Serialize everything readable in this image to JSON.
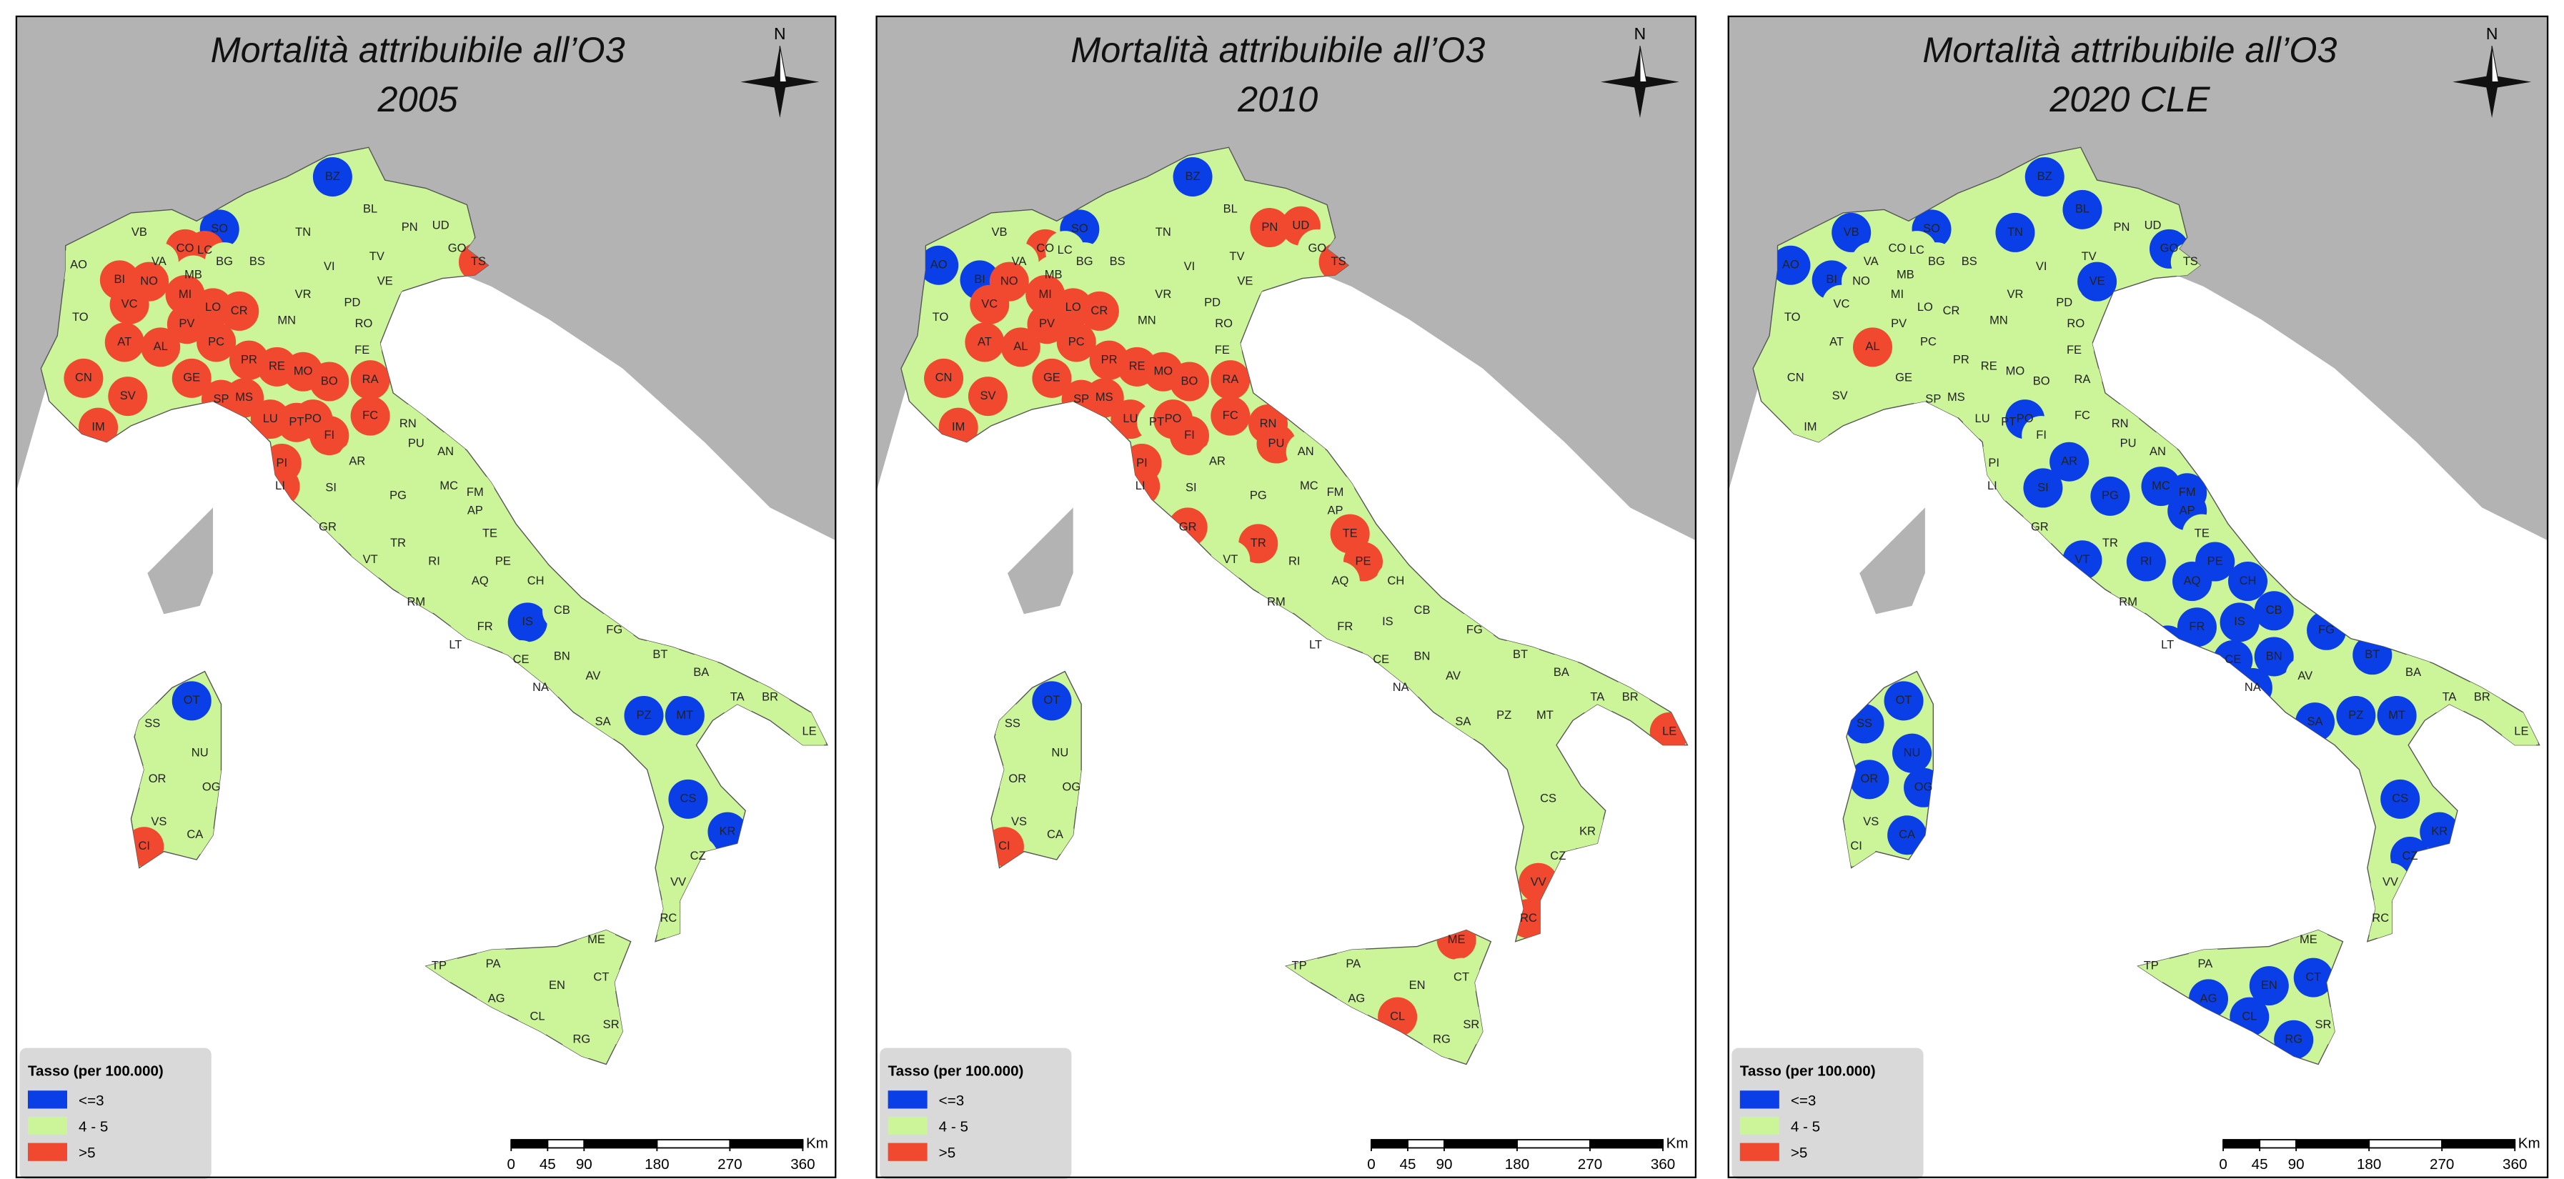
{
  "legend": {
    "title": "Tasso (per 100.000)",
    "items": [
      {
        "label": "<=3",
        "color": "#0a3ee6"
      },
      {
        "label": "4 - 5",
        "color": "#ccf59a"
      },
      {
        "label": ">5",
        "color": "#f0492f"
      }
    ]
  },
  "scale_bar": {
    "unit": "Km",
    "ticks": [
      0,
      45,
      90,
      180,
      270,
      360
    ]
  },
  "north": "N",
  "provinces": [
    "BZ",
    "BL",
    "UD",
    "PN",
    "TN",
    "SO",
    "GO",
    "TS",
    "VB",
    "CO",
    "LC",
    "BG",
    "BS",
    "VI",
    "TV",
    "VA",
    "AO",
    "MB",
    "MI",
    "BI",
    "NO",
    "VE",
    "PD",
    "VR",
    "VC",
    "LO",
    "CR",
    "MN",
    "RO",
    "TO",
    "PV",
    "PC",
    "AT",
    "AL",
    "FE",
    "PR",
    "RE",
    "MO",
    "GE",
    "BO",
    "RA",
    "CN",
    "SV",
    "SP",
    "MS",
    "LU",
    "PT",
    "PO",
    "FI",
    "RN",
    "FC",
    "IM",
    "PU",
    "AN",
    "PI",
    "AR",
    "SI",
    "MC",
    "FM",
    "LI",
    "AP",
    "PG",
    "GR",
    "TE",
    "TR",
    "PE",
    "RI",
    "VT",
    "AQ",
    "CH",
    "RM",
    "FR",
    "IS",
    "CB",
    "FG",
    "LT",
    "CE",
    "BN",
    "AV",
    "BT",
    "BA",
    "NA",
    "SA",
    "TA",
    "BR",
    "PZ",
    "MT",
    "LE",
    "CS",
    "KR",
    "CZ",
    "VV",
    "RC",
    "ME",
    "TP",
    "PA",
    "CT",
    "AG",
    "EN",
    "CL",
    "SR",
    "RG",
    "SS",
    "OT",
    "NU",
    "OR",
    "OG",
    "VS",
    "CA",
    "CI"
  ],
  "panels": [
    {
      "title": "Mortalità attribuibile all’O3",
      "subtitle": "2005",
      "classes": [
        0,
        1,
        1,
        1,
        1,
        0,
        1,
        2,
        1,
        2,
        2,
        1,
        1,
        1,
        1,
        1,
        1,
        1,
        2,
        2,
        2,
        1,
        1,
        1,
        2,
        2,
        2,
        1,
        1,
        1,
        2,
        2,
        2,
        2,
        1,
        2,
        2,
        2,
        2,
        2,
        2,
        2,
        2,
        2,
        2,
        2,
        2,
        2,
        2,
        1,
        2,
        2,
        1,
        1,
        2,
        1,
        1,
        1,
        1,
        2,
        1,
        1,
        1,
        1,
        1,
        1,
        1,
        1,
        1,
        1,
        1,
        1,
        0,
        1,
        1,
        1,
        1,
        1,
        1,
        1,
        1,
        1,
        1,
        1,
        1,
        0,
        0,
        1,
        0,
        0,
        1,
        1,
        1,
        1,
        1,
        1,
        1,
        1,
        1,
        1,
        1,
        1,
        1,
        0,
        1,
        1,
        1,
        1,
        1,
        2
      ]
    },
    {
      "title": "Mortalità attribuibile all’O3",
      "subtitle": "2010",
      "classes": [
        0,
        1,
        2,
        2,
        1,
        0,
        1,
        2,
        1,
        2,
        1,
        1,
        1,
        1,
        1,
        1,
        0,
        1,
        2,
        0,
        2,
        1,
        1,
        1,
        2,
        2,
        2,
        1,
        1,
        1,
        2,
        2,
        2,
        2,
        1,
        2,
        2,
        2,
        2,
        2,
        2,
        2,
        2,
        2,
        2,
        2,
        1,
        2,
        2,
        2,
        2,
        2,
        2,
        1,
        2,
        1,
        1,
        1,
        1,
        2,
        1,
        1,
        2,
        2,
        2,
        2,
        1,
        1,
        1,
        1,
        1,
        1,
        1,
        1,
        1,
        1,
        1,
        1,
        1,
        1,
        1,
        1,
        1,
        1,
        1,
        1,
        1,
        2,
        1,
        1,
        1,
        2,
        2,
        2,
        1,
        1,
        1,
        1,
        1,
        2,
        1,
        1,
        1,
        0,
        1,
        1,
        1,
        1,
        1,
        2
      ]
    },
    {
      "title": "Mortalità attribuibile all’O3",
      "subtitle": "2020 CLE",
      "classes": [
        0,
        0,
        1,
        1,
        0,
        0,
        0,
        1,
        0,
        1,
        1,
        1,
        1,
        1,
        1,
        1,
        0,
        1,
        1,
        0,
        1,
        0,
        1,
        1,
        1,
        1,
        1,
        1,
        1,
        1,
        1,
        1,
        1,
        2,
        1,
        1,
        1,
        1,
        1,
        1,
        1,
        1,
        1,
        1,
        1,
        1,
        1,
        0,
        1,
        1,
        1,
        1,
        1,
        1,
        1,
        0,
        0,
        0,
        0,
        1,
        0,
        0,
        1,
        1,
        1,
        0,
        0,
        0,
        0,
        0,
        1,
        0,
        0,
        0,
        0,
        0,
        0,
        0,
        1,
        0,
        1,
        0,
        0,
        1,
        1,
        0,
        0,
        1,
        0,
        0,
        0,
        1,
        1,
        1,
        1,
        1,
        0,
        0,
        0,
        0,
        1,
        0,
        0,
        0,
        0,
        0,
        0,
        1,
        0,
        1
      ]
    }
  ]
}
